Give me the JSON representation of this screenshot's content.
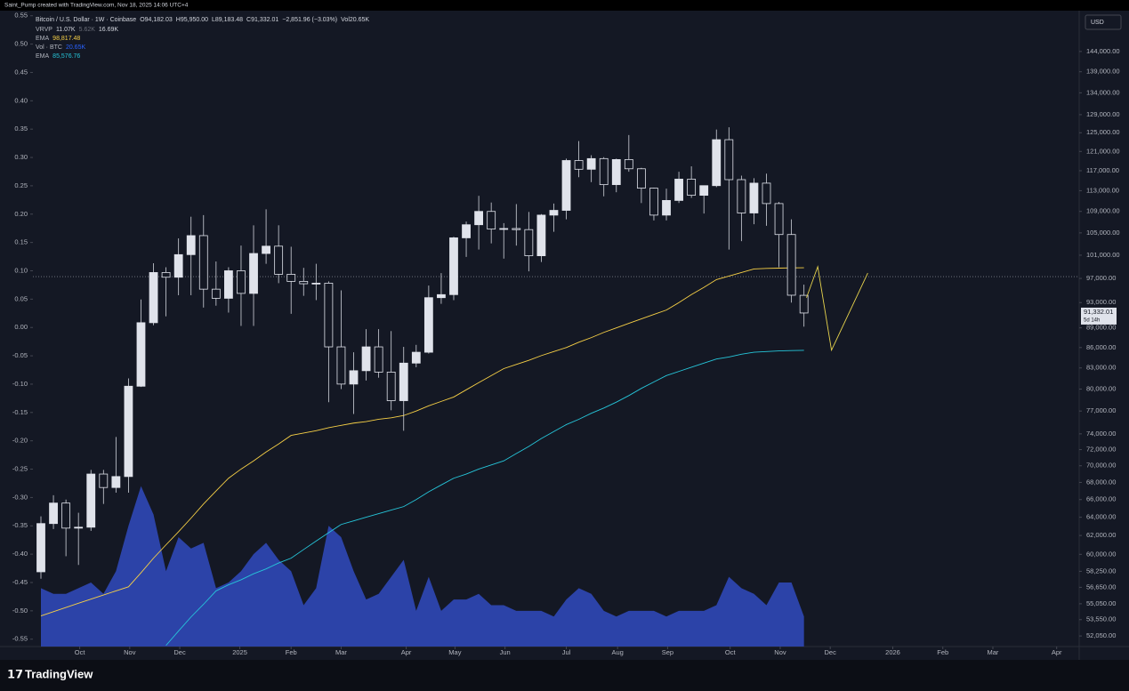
{
  "banner": "Saint_Pump created with TradingView.com, Nov 18, 2025 14:06 UTC+4",
  "footer": {
    "brand": "TradingView"
  },
  "currency_button": "USD",
  "chart_data": {
    "type": "candlestick",
    "symbol": "Bitcoin / U.S. Dollar · 1W · Coinbase",
    "ohlc_labels": [
      "O94,182.03",
      "H95,950.00",
      "L89,183.48",
      "C91,332.01",
      "−2,851.96 (−3.03%)",
      "Vol20.65K"
    ],
    "indicator_legend": [
      {
        "name": "VRVP",
        "labels": [
          "11.07K",
          "5.62K",
          "16.69K"
        ],
        "colors": [
          "#d1d4dc",
          "#6a6d78",
          "#d1d4dc"
        ]
      },
      {
        "name": "EMA",
        "labels": [
          "98,817.48"
        ],
        "colors": [
          "#f7d046"
        ]
      },
      {
        "name": "Vol · BTC",
        "labels": [
          "20.65K"
        ],
        "colors": [
          "#2962ff"
        ]
      },
      {
        "name": "EMA",
        "labels": [
          "85,576.76"
        ],
        "colors": [
          "#26c6da"
        ]
      }
    ],
    "log_scale": true,
    "up_color": "#e0e3eb",
    "down_color": "#141824",
    "wick_color": "#d1d4dc",
    "open": [
      58200,
      63300,
      65600,
      62800,
      62900,
      69000,
      67400,
      68700,
      80400,
      89800,
      98000,
      97200,
      101100,
      104500,
      95200,
      93700,
      98300,
      94500,
      101300,
      102600,
      97700,
      96500,
      96100,
      96200,
      86100,
      80700,
      82600,
      86100,
      82400,
      78400,
      83700,
      85300,
      93800,
      94300,
      104100,
      106500,
      109000,
      105700,
      105800,
      105600,
      100900,
      108300,
      109200,
      119100,
      117300,
      119500,
      114200,
      119300,
      117400,
      113500,
      108300,
      111100,
      115300,
      112100,
      114000,
      123500,
      115200,
      108700,
      114500,
      110500,
      104700,
      94182.03
    ],
    "high": [
      64100,
      66500,
      66000,
      64500,
      69500,
      69500,
      73600,
      81500,
      93500,
      99600,
      98900,
      104000,
      108000,
      108300,
      99900,
      98900,
      102700,
      106400,
      109400,
      106400,
      102500,
      98800,
      99500,
      96500,
      95000,
      85300,
      88800,
      88800,
      88500,
      86100,
      86400,
      95800,
      97900,
      104300,
      107100,
      112000,
      110700,
      106800,
      110400,
      108900,
      108500,
      110500,
      119500,
      123200,
      120200,
      119800,
      119500,
      124500,
      117600,
      113600,
      113400,
      116800,
      117900,
      114000,
      125700,
      126200,
      116000,
      115500,
      116400,
      110800,
      107500,
      95950
    ],
    "low": [
      57500,
      62700,
      59800,
      58900,
      62500,
      65500,
      66800,
      66800,
      80300,
      89400,
      90800,
      94200,
      94200,
      92200,
      92500,
      91400,
      89300,
      89300,
      99500,
      96200,
      91200,
      94100,
      93400,
      78200,
      80000,
      76600,
      81200,
      81600,
      77100,
      74400,
      83100,
      85100,
      92800,
      93400,
      100700,
      102000,
      103100,
      100400,
      102700,
      98200,
      99800,
      105200,
      107500,
      115700,
      114700,
      111900,
      112700,
      116800,
      110600,
      107300,
      107300,
      110600,
      111600,
      108600,
      113700,
      102000,
      103500,
      106600,
      106300,
      98900,
      93000,
      89183.48
    ],
    "close": [
      63300,
      65600,
      62800,
      62900,
      69000,
      67400,
      68700,
      80400,
      89800,
      98000,
      97200,
      101100,
      104500,
      95200,
      93700,
      98300,
      94500,
      101300,
      102600,
      97700,
      96500,
      96100,
      96200,
      86100,
      80700,
      82600,
      86100,
      82400,
      78400,
      83700,
      85300,
      93800,
      94300,
      104100,
      106500,
      109000,
      105700,
      105800,
      105600,
      100900,
      108300,
      109200,
      119100,
      117300,
      119500,
      114200,
      119300,
      117400,
      113500,
      108300,
      111100,
      115300,
      112100,
      114000,
      123500,
      115200,
      108700,
      114500,
      110500,
      104700,
      94200,
      91332.01
    ],
    "series": [
      {
        "name": "EMA",
        "color": "#f7d046",
        "values": [
          53900,
          54300,
          54700,
          55100,
          55500,
          55900,
          56300,
          56700,
          58100,
          59600,
          61000,
          62400,
          63900,
          65500,
          67000,
          68500,
          69600,
          70600,
          71700,
          72700,
          73800,
          74100,
          74400,
          74800,
          75100,
          75400,
          75600,
          75900,
          76100,
          76400,
          77000,
          77700,
          78300,
          78900,
          79900,
          80900,
          81900,
          82900,
          83500,
          84100,
          84800,
          85400,
          86000,
          86800,
          87500,
          88300,
          89000,
          89700,
          90400,
          91100,
          91800,
          93000,
          94300,
          95500,
          96800,
          97400,
          98000,
          98600,
          98700,
          98750,
          98800,
          98817.48
        ]
      },
      {
        "name": "EMA",
        "color": "#26c6da",
        "values": [
          null,
          null,
          null,
          null,
          null,
          null,
          null,
          null,
          null,
          null,
          51200,
          52500,
          53800,
          55000,
          56300,
          56900,
          57400,
          58000,
          58500,
          59100,
          59600,
          60500,
          61400,
          62300,
          63200,
          63600,
          64000,
          64400,
          64800,
          65200,
          66000,
          66900,
          67700,
          68500,
          69000,
          69600,
          70100,
          70600,
          71500,
          72400,
          73400,
          74300,
          75200,
          75900,
          76700,
          77400,
          78200,
          79100,
          80100,
          81000,
          81900,
          82500,
          83100,
          83700,
          84300,
          84600,
          85000,
          85300,
          85400,
          85500,
          85550,
          85576.76
        ]
      },
      {
        "name": "Vol · BTC",
        "color": "#2c43a8",
        "axis": "y2",
        "area": true,
        "values": [
          -0.46,
          -0.47,
          -0.47,
          -0.46,
          -0.45,
          -0.47,
          -0.43,
          -0.35,
          -0.28,
          -0.33,
          -0.43,
          -0.37,
          -0.39,
          -0.38,
          -0.46,
          -0.45,
          -0.43,
          -0.4,
          -0.38,
          -0.41,
          -0.43,
          -0.49,
          -0.46,
          -0.35,
          -0.37,
          -0.43,
          -0.48,
          -0.47,
          -0.44,
          -0.41,
          -0.5,
          -0.44,
          -0.5,
          -0.48,
          -0.48,
          -0.47,
          -0.49,
          -0.49,
          -0.5,
          -0.5,
          -0.5,
          -0.51,
          -0.48,
          -0.46,
          -0.47,
          -0.5,
          -0.51,
          -0.5,
          -0.5,
          -0.5,
          -0.51,
          -0.5,
          -0.5,
          -0.5,
          -0.49,
          -0.44,
          -0.46,
          -0.47,
          -0.49,
          -0.45,
          -0.45,
          -0.51
        ]
      }
    ],
    "drawing": {
      "color": "#e8d44d",
      "x": [
        61.2,
        62.1,
        63.2,
        66.1
      ],
      "values": [
        93800,
        99000,
        85600,
        97900
      ]
    },
    "point_of_control": 97300,
    "price_label": {
      "value": 91332.01,
      "text": "91,332.01",
      "countdown": "5d 14h"
    },
    "xlim": [
      -0.64,
      83.0
    ],
    "xticks": [
      {
        "value": 3.1,
        "label": "Oct"
      },
      {
        "value": 7.1,
        "label": "Nov"
      },
      {
        "value": 11.1,
        "label": "Dec"
      },
      {
        "value": 15.9,
        "label": "2025"
      },
      {
        "value": 20.0,
        "label": "Feb"
      },
      {
        "value": 24.0,
        "label": "Mar"
      },
      {
        "value": 29.2,
        "label": "Apr"
      },
      {
        "value": 33.1,
        "label": "May"
      },
      {
        "value": 37.1,
        "label": "Jun"
      },
      {
        "value": 42.0,
        "label": "Jul"
      },
      {
        "value": 46.1,
        "label": "Aug"
      },
      {
        "value": 50.1,
        "label": "Sep"
      },
      {
        "value": 55.1,
        "label": "Oct"
      },
      {
        "value": 59.1,
        "label": "Nov"
      },
      {
        "value": 63.1,
        "label": "Dec"
      },
      {
        "value": 68.1,
        "label": "2026"
      },
      {
        "value": 72.1,
        "label": "Feb"
      },
      {
        "value": 76.1,
        "label": "Mar"
      },
      {
        "value": 81.2,
        "label": "Apr"
      }
    ],
    "ylim": [
      51100,
      154600
    ],
    "yticks": [
      {
        "value": 144000,
        "label": "144,000.00"
      },
      {
        "value": 139000,
        "label": "139,000.00"
      },
      {
        "value": 134000,
        "label": "134,000.00"
      },
      {
        "value": 129000,
        "label": "129,000.00"
      },
      {
        "value": 125000,
        "label": "125,000.00"
      },
      {
        "value": 121000,
        "label": "121,000.00"
      },
      {
        "value": 117000,
        "label": "117,000.00"
      },
      {
        "value": 113000,
        "label": "113,000.00"
      },
      {
        "value": 109000,
        "label": "109,000.00"
      },
      {
        "value": 105000,
        "label": "105,000.00"
      },
      {
        "value": 101000,
        "label": "101,000.00"
      },
      {
        "value": 97000,
        "label": "97,000.00"
      },
      {
        "value": 93000,
        "label": "93,000.00"
      },
      {
        "value": 89000,
        "label": "89,000.00"
      },
      {
        "value": 86000,
        "label": "86,000.00"
      },
      {
        "value": 83000,
        "label": "83,000.00"
      },
      {
        "value": 80000,
        "label": "80,000.00"
      },
      {
        "value": 77000,
        "label": "77,000.00"
      },
      {
        "value": 74000,
        "label": "74,000.00"
      },
      {
        "value": 72000,
        "label": "72,000.00"
      },
      {
        "value": 70000,
        "label": "70,000.00"
      },
      {
        "value": 68000,
        "label": "68,000.00"
      },
      {
        "value": 66000,
        "label": "66,000.00"
      },
      {
        "value": 64000,
        "label": "64,000.00"
      },
      {
        "value": 62000,
        "label": "62,000.00"
      },
      {
        "value": 60000,
        "label": "60,000.00"
      },
      {
        "value": 58250,
        "label": "58,250.00"
      },
      {
        "value": 56650,
        "label": "56,650.00"
      },
      {
        "value": 55050,
        "label": "55,050.00"
      },
      {
        "value": 53550,
        "label": "53,550.00"
      },
      {
        "value": 52050,
        "label": "52,050.00"
      }
    ],
    "y2lim": [
      -0.563,
      0.559
    ],
    "y2ticks": [
      0.55,
      {
        "value": 0.5,
        "label": "0.50"
      },
      0.45,
      {
        "value": 0.4,
        "label": "0.40"
      },
      0.35,
      {
        "value": 0.3,
        "label": "0.30"
      },
      0.25,
      {
        "value": 0.2,
        "label": "0.20"
      },
      0.15,
      {
        "value": 0.1,
        "label": "0.10"
      },
      0.05,
      {
        "value": 0,
        "label": "0.00"
      },
      -0.05,
      {
        "value": -0.1,
        "label": "-0.10"
      },
      -0.15,
      {
        "value": -0.2,
        "label": "-0.20"
      },
      -0.25,
      {
        "value": -0.3,
        "label": "-0.30"
      },
      -0.35,
      {
        "value": -0.4,
        "label": "-0.40"
      },
      -0.45,
      {
        "value": -0.5,
        "label": "-0.50"
      },
      -0.55
    ]
  }
}
